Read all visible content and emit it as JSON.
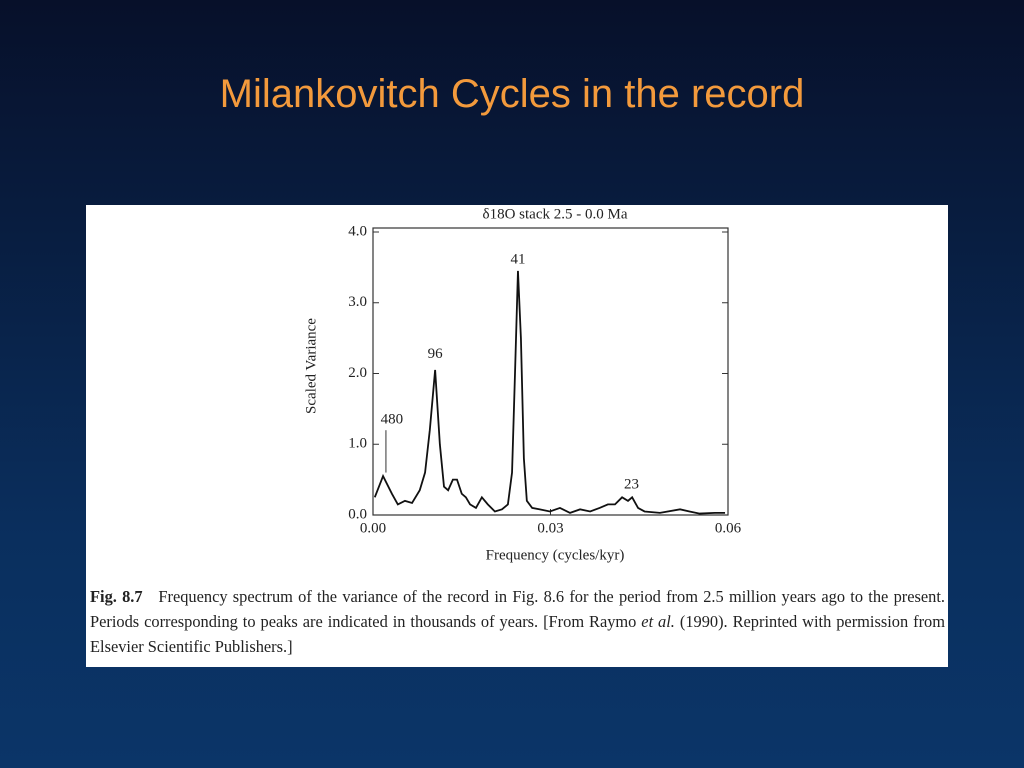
{
  "slide_title": "Milankovitch Cycles in the record",
  "chart_data": {
    "type": "line",
    "title": "δ18O stack 2.5 - 0.0 Ma",
    "x_label": "Frequency (cycles/kyr)",
    "y_label": "Scaled Variance",
    "x": [
      0.0003,
      0.0017,
      0.0032,
      0.0042,
      0.0054,
      0.0066,
      0.0079,
      0.0088,
      0.0096,
      0.0105,
      0.0113,
      0.012,
      0.0127,
      0.0135,
      0.0142,
      0.015,
      0.0157,
      0.0164,
      0.0174,
      0.0184,
      0.0194,
      0.0206,
      0.0218,
      0.0228,
      0.0235,
      0.024,
      0.0245,
      0.025,
      0.0255,
      0.026,
      0.0269,
      0.0282,
      0.0299,
      0.0316,
      0.0333,
      0.035,
      0.0367,
      0.0383,
      0.0397,
      0.0409,
      0.0421,
      0.0431,
      0.0438,
      0.0448,
      0.0459,
      0.0485,
      0.0519,
      0.0535,
      0.0552,
      0.0578,
      0.0595
    ],
    "values": [
      0.25,
      0.55,
      0.3,
      0.15,
      0.2,
      0.17,
      0.35,
      0.6,
      1.2,
      2.05,
      1.0,
      0.4,
      0.35,
      0.5,
      0.5,
      0.3,
      0.25,
      0.15,
      0.1,
      0.25,
      0.15,
      0.05,
      0.08,
      0.15,
      0.6,
      2.0,
      3.45,
      2.5,
      0.8,
      0.2,
      0.1,
      0.08,
      0.05,
      0.1,
      0.03,
      0.08,
      0.05,
      0.1,
      0.15,
      0.15,
      0.25,
      0.2,
      0.25,
      0.1,
      0.05,
      0.03,
      0.08,
      0.05,
      0.02,
      0.03,
      0.03
    ],
    "color": "#111111",
    "xlim": [
      0,
      0.06
    ],
    "ylim": [
      0,
      4.0
    ],
    "xticks": [
      {
        "value": 0,
        "label": "0.00"
      },
      {
        "value": 0.03,
        "label": "0.03"
      },
      {
        "value": 0.06,
        "label": "0.06"
      }
    ],
    "yticks": [
      {
        "value": 0,
        "label": "0.0"
      },
      {
        "value": 1,
        "label": "1.0"
      },
      {
        "value": 2,
        "label": "2.0"
      },
      {
        "value": 3,
        "label": "3.0"
      },
      {
        "value": 4,
        "label": "4.0"
      }
    ],
    "annotations": [
      {
        "text": "480",
        "x": 0.0032,
        "y": 1.34,
        "leader_to": 0.6
      },
      {
        "text": "96",
        "x": 0.0105,
        "y": 2.27
      },
      {
        "text": "41",
        "x": 0.0245,
        "y": 3.6
      },
      {
        "text": "23",
        "x": 0.0437,
        "y": 0.42
      }
    ]
  },
  "caption": {
    "label": "Fig. 8.7",
    "text": "Frequency spectrum of the variance of the record in Fig. 8.6 for the period from 2.5 million years ago to the present. Periods corresponding to peaks are indicated in thousands of years. [From Raymo",
    "italic": "et al.",
    "text_end": "(1990). Reprinted with permission from Elsevier Scientific Publishers.]"
  }
}
